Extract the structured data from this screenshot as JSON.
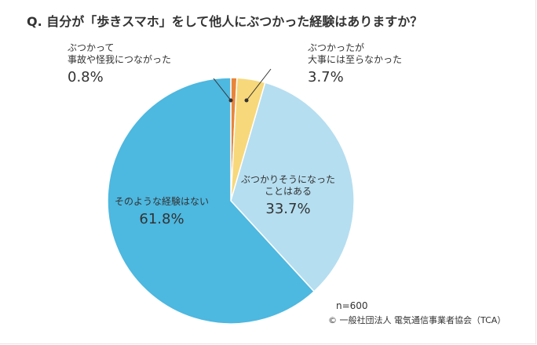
{
  "chart_data": {
    "type": "pie",
    "title": "Q. 自分が「歩きスマホ」をして他人にぶつかった経験はありますか？",
    "slices": [
      {
        "label_lines": [
          "ぶつかって",
          "事故や怪我につながった"
        ],
        "percent_label": "0.8%",
        "value": 0.8,
        "color": "#e8853b"
      },
      {
        "label_lines": [
          "ぶつかったが",
          "大事には至らなかった"
        ],
        "percent_label": "3.7%",
        "value": 3.7,
        "color": "#f7d87a"
      },
      {
        "label_lines": [
          "ぶつかりそうになった",
          "ことはある"
        ],
        "percent_label": "33.7%",
        "value": 33.7,
        "color": "#b5def0"
      },
      {
        "label_lines": [
          "そのような経験はない"
        ],
        "percent_label": "61.8%",
        "value": 61.8,
        "color": "#4db8e0"
      }
    ],
    "start_angle_deg": 0,
    "direction": "clockwise"
  },
  "note": {
    "sample": "n=600",
    "copyright": "© 一般社団法人 電気通信事業者協会（TCA）"
  }
}
